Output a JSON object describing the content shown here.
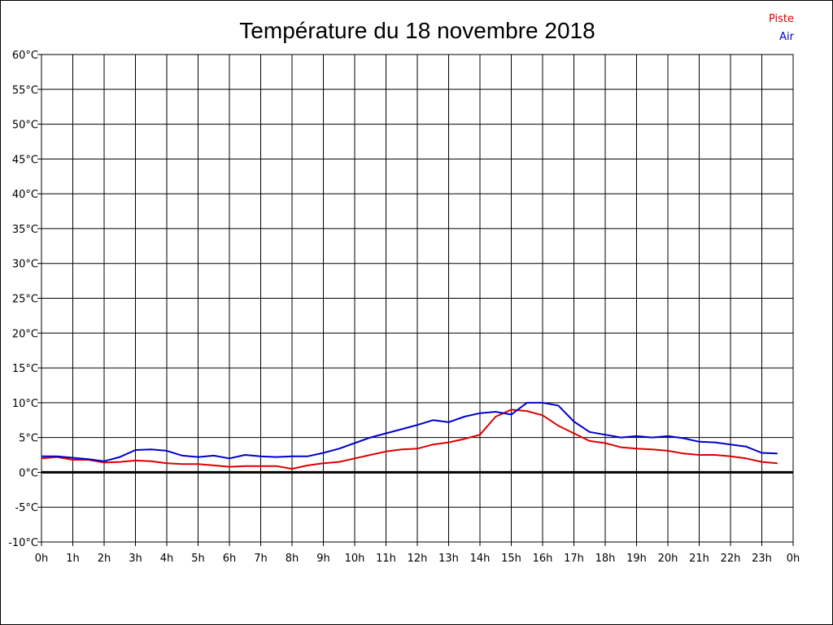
{
  "chart_data": {
    "type": "line",
    "title": "Température du 18 novembre 2018",
    "xlabel": "",
    "ylabel": "",
    "x_tick_labels": [
      "0h",
      "1h",
      "2h",
      "3h",
      "4h",
      "5h",
      "6h",
      "7h",
      "8h",
      "9h",
      "10h",
      "11h",
      "12h",
      "13h",
      "14h",
      "15h",
      "16h",
      "17h",
      "18h",
      "19h",
      "20h",
      "21h",
      "22h",
      "23h",
      "0h"
    ],
    "y_ticks": [
      -10,
      -5,
      0,
      5,
      10,
      15,
      20,
      25,
      30,
      35,
      40,
      45,
      50,
      55,
      60
    ],
    "y_tick_labels": [
      "-10°C",
      "-5°C",
      "0°C",
      "5°C",
      "10°C",
      "15°C",
      "20°C",
      "25°C",
      "30°C",
      "35°C",
      "40°C",
      "45°C",
      "50°C",
      "55°C",
      "60°C"
    ],
    "xlim": [
      0,
      24
    ],
    "ylim": [
      -10,
      60
    ],
    "grid": true,
    "zero_line": true,
    "legend_position": "top-right",
    "series": [
      {
        "name": "Piste",
        "color": "#dd0000",
        "x": [
          0,
          0.5,
          1,
          1.5,
          2,
          2.5,
          3,
          3.5,
          4,
          4.5,
          5,
          5.5,
          6,
          6.5,
          7,
          7.5,
          8,
          8.5,
          9,
          9.5,
          10,
          10.5,
          11,
          11.5,
          12,
          12.5,
          13,
          13.5,
          14,
          14.5,
          15,
          15.5,
          16,
          16.5,
          17,
          17.5,
          18,
          18.5,
          19,
          19.5,
          20,
          20.5,
          21,
          21.5,
          22,
          22.5,
          23,
          23.5
        ],
        "values": [
          2.0,
          2.2,
          1.8,
          1.8,
          1.4,
          1.5,
          1.7,
          1.6,
          1.3,
          1.2,
          1.2,
          1.0,
          0.8,
          0.9,
          0.9,
          0.9,
          0.5,
          1.0,
          1.3,
          1.5,
          2.0,
          2.5,
          3.0,
          3.3,
          3.4,
          4.0,
          4.3,
          4.8,
          5.4,
          8.0,
          9.0,
          8.8,
          8.2,
          6.7,
          5.6,
          4.5,
          4.2,
          3.6,
          3.4,
          3.3,
          3.1,
          2.7,
          2.5,
          2.5,
          2.3,
          2.0,
          1.5,
          1.3
        ]
      },
      {
        "name": "Air",
        "color": "#0000cc",
        "x": [
          0,
          0.5,
          1,
          1.5,
          2,
          2.5,
          3,
          3.5,
          4,
          4.5,
          5,
          5.5,
          6,
          6.5,
          7,
          7.5,
          8,
          8.5,
          9,
          9.5,
          10,
          10.5,
          11,
          11.5,
          12,
          12.5,
          13,
          13.5,
          14,
          14.5,
          15,
          15.5,
          16,
          16.5,
          17,
          17.5,
          18,
          18.5,
          19,
          19.5,
          20,
          20.5,
          21,
          21.5,
          22,
          22.5,
          23,
          23.5
        ],
        "values": [
          2.3,
          2.3,
          2.1,
          1.9,
          1.6,
          2.2,
          3.2,
          3.3,
          3.1,
          2.4,
          2.2,
          2.4,
          2.0,
          2.5,
          2.3,
          2.2,
          2.3,
          2.3,
          2.8,
          3.4,
          4.2,
          5.0,
          5.6,
          6.2,
          6.8,
          7.5,
          7.2,
          8.0,
          8.5,
          8.7,
          8.3,
          10.0,
          10.0,
          9.6,
          7.3,
          5.8,
          5.4,
          5.0,
          5.2,
          5.0,
          5.2,
          4.9,
          4.4,
          4.3,
          4.0,
          3.7,
          2.8,
          2.7
        ]
      }
    ]
  }
}
